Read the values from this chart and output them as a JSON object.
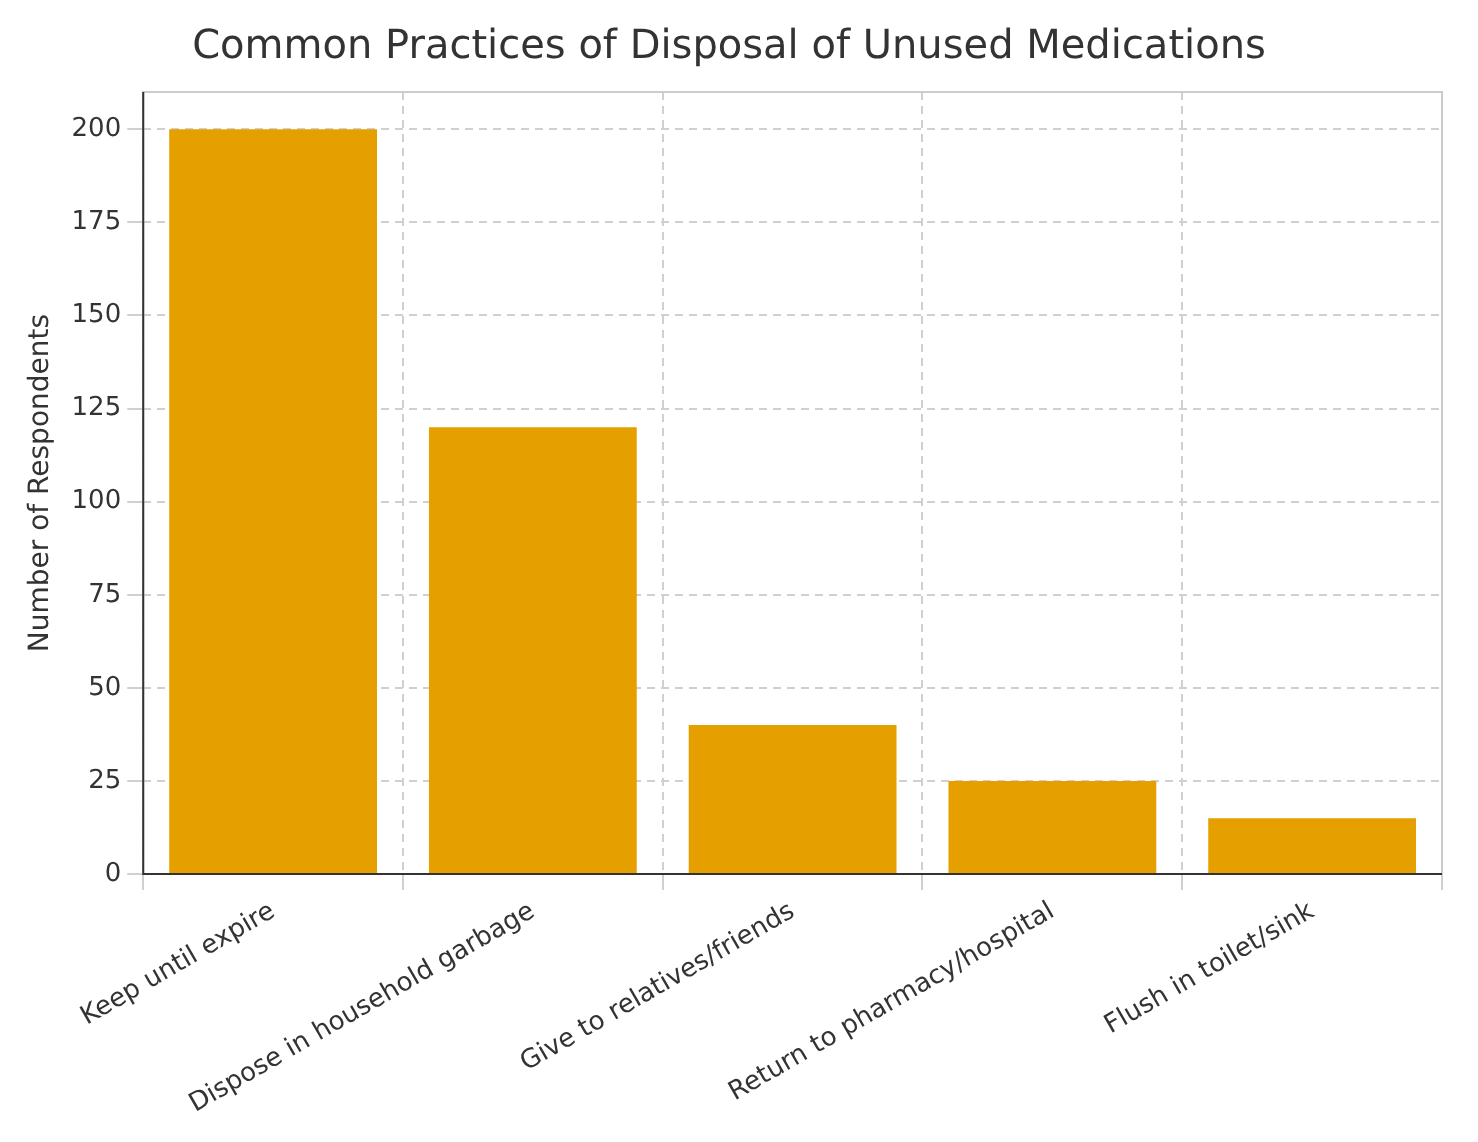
{
  "chart_data": {
    "type": "bar",
    "title": "Common Practices of Disposal of Unused Medications",
    "ylabel": "Number of Respondents",
    "categories": [
      "Keep until expire",
      "Dispose in household garbage",
      "Give to relatives/friends",
      "Return to pharmacy/hospital",
      "Flush in toilet/sink"
    ],
    "values": [
      200,
      120,
      40,
      25,
      15
    ],
    "color": "#e5a000",
    "ylim": [
      0,
      210
    ],
    "yticks": [
      0,
      25,
      50,
      75,
      100,
      125,
      150,
      175,
      200
    ],
    "grid": true
  }
}
